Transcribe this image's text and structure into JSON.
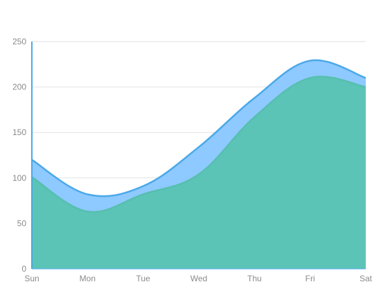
{
  "chart_data": {
    "type": "area",
    "categories": [
      "Sun",
      "Mon",
      "Tue",
      "Wed",
      "Thu",
      "Fri",
      "Sat"
    ],
    "series": [
      {
        "values": [
          120,
          82,
          91,
          134,
          188,
          229,
          210
        ],
        "color": "#8ec9ff",
        "stroke": "#4aa8e8"
      },
      {
        "values": [
          101,
          63,
          82,
          104,
          167,
          210,
          200
        ],
        "color": "#5cc4b7",
        "stroke": "#56bfae"
      }
    ],
    "yticks": [
      0,
      50,
      100,
      150,
      200,
      250
    ],
    "ylim": [
      0,
      250
    ],
    "grid": true,
    "colors": {
      "axis": "#4aa8e8",
      "grid": "#e2e2e2",
      "tick_text": "#8a8a8a"
    }
  }
}
